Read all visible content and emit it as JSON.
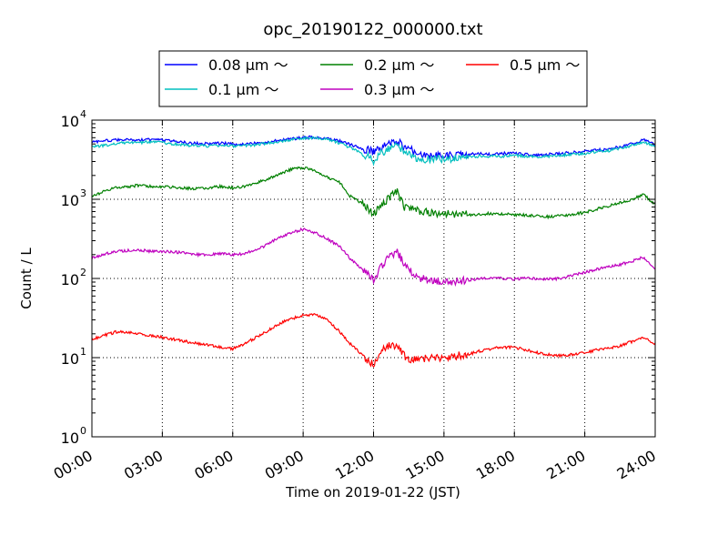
{
  "chart_data": {
    "type": "line",
    "title": "opc_20190122_000000.txt",
    "xlabel": "Time on 2019-01-22 (JST)",
    "ylabel": "Count / L",
    "yscale": "log",
    "xlim": [
      0,
      24
    ],
    "ylim": [
      1,
      10000
    ],
    "x_ticks": [
      0,
      3,
      6,
      9,
      12,
      15,
      18,
      21,
      24
    ],
    "x_tick_labels": [
      "00:00",
      "03:00",
      "06:00",
      "09:00",
      "12:00",
      "15:00",
      "18:00",
      "21:00",
      "24:00"
    ],
    "y_ticks": [
      1,
      10,
      100,
      1000,
      10000
    ],
    "y_tick_bases": [
      "10",
      "10",
      "10",
      "10",
      "10"
    ],
    "y_tick_exponents": [
      "0",
      "1",
      "2",
      "3",
      "4"
    ],
    "grid": true,
    "legend_position": "top-center",
    "x": [
      0,
      0.5,
      1,
      1.5,
      2,
      2.5,
      3,
      3.5,
      4,
      4.5,
      5,
      5.5,
      6,
      6.5,
      7,
      7.5,
      8,
      8.5,
      9,
      9.5,
      10,
      10.5,
      11,
      11.5,
      12,
      12.3,
      12.6,
      13,
      13.3,
      13.6,
      14,
      14.5,
      15,
      15.5,
      16,
      16.5,
      17,
      17.5,
      18,
      18.5,
      19,
      19.5,
      20,
      20.5,
      21,
      21.5,
      22,
      22.5,
      23,
      23.5,
      24
    ],
    "series": [
      {
        "name": "0.08 μm ～",
        "color": "#0000ff",
        "values": [
          5300,
          5500,
          5600,
          5700,
          5600,
          5700,
          5600,
          5400,
          5200,
          5100,
          5000,
          5100,
          5000,
          5000,
          5100,
          5300,
          5600,
          5800,
          6000,
          6100,
          5800,
          5500,
          4900,
          4400,
          4000,
          4500,
          5000,
          5500,
          4600,
          4200,
          3600,
          3500,
          3500,
          3600,
          3700,
          3800,
          3700,
          3800,
          3800,
          3700,
          3600,
          3700,
          3800,
          3900,
          4000,
          4200,
          4300,
          4600,
          5000,
          5600,
          4900
        ]
      },
      {
        "name": "0.1 μm ～",
        "color": "#00bfbf",
        "values": [
          4600,
          4800,
          5000,
          5200,
          5200,
          5300,
          5200,
          5000,
          4800,
          4800,
          4700,
          4800,
          4700,
          4800,
          4900,
          5100,
          5400,
          5700,
          5900,
          6000,
          5700,
          5200,
          4500,
          3900,
          3100,
          3800,
          4300,
          4800,
          3900,
          3600,
          3200,
          3200,
          3200,
          3300,
          3400,
          3500,
          3500,
          3500,
          3600,
          3500,
          3400,
          3500,
          3600,
          3700,
          3800,
          4000,
          4100,
          4400,
          4800,
          5300,
          4600
        ]
      },
      {
        "name": "0.2 μm ～",
        "color": "#008000",
        "values": [
          1100,
          1250,
          1400,
          1450,
          1500,
          1450,
          1450,
          1420,
          1380,
          1350,
          1400,
          1450,
          1400,
          1450,
          1600,
          1800,
          2100,
          2400,
          2500,
          2300,
          1900,
          1700,
          1100,
          900,
          650,
          800,
          1000,
          1250,
          800,
          750,
          700,
          680,
          650,
          650,
          640,
          650,
          660,
          650,
          640,
          630,
          620,
          600,
          620,
          650,
          680,
          750,
          820,
          900,
          1000,
          1150,
          850
        ]
      },
      {
        "name": "0.3 μm ～",
        "color": "#bf00bf",
        "values": [
          180,
          200,
          220,
          225,
          230,
          220,
          220,
          215,
          210,
          200,
          200,
          205,
          200,
          205,
          230,
          270,
          330,
          380,
          420,
          380,
          320,
          260,
          180,
          130,
          95,
          140,
          180,
          220,
          150,
          120,
          100,
          95,
          92,
          92,
          95,
          100,
          100,
          100,
          98,
          100,
          100,
          98,
          100,
          110,
          120,
          130,
          140,
          150,
          165,
          185,
          135
        ]
      },
      {
        "name": "0.5 μm ～",
        "color": "#ff0000",
        "values": [
          17,
          19,
          21,
          21,
          20,
          19,
          18,
          17,
          16,
          15,
          14.5,
          13.5,
          13,
          15,
          18,
          22,
          27,
          31,
          34,
          35,
          30,
          22,
          15,
          11,
          8,
          12,
          14,
          14,
          10.5,
          9.5,
          9.5,
          10,
          9.5,
          10.5,
          11,
          12,
          13,
          13.5,
          13.5,
          12.5,
          11.5,
          11,
          10.5,
          11,
          11.5,
          12.5,
          13,
          14,
          16,
          18,
          15
        ]
      }
    ]
  }
}
